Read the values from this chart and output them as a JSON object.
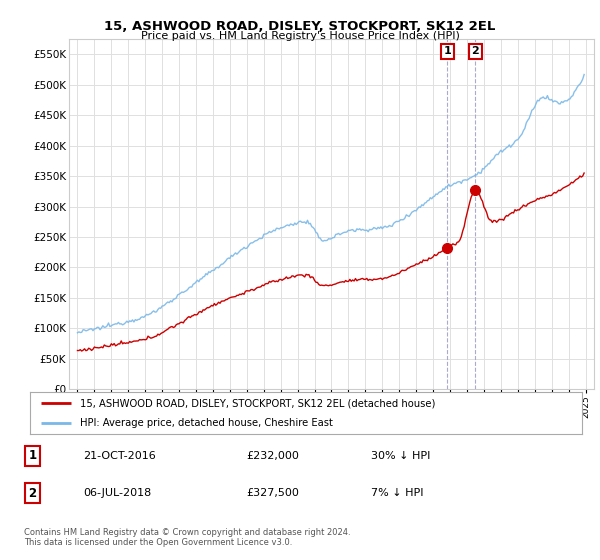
{
  "title": "15, ASHWOOD ROAD, DISLEY, STOCKPORT, SK12 2EL",
  "subtitle": "Price paid vs. HM Land Registry's House Price Index (HPI)",
  "legend_line1": "15, ASHWOOD ROAD, DISLEY, STOCKPORT, SK12 2EL (detached house)",
  "legend_line2": "HPI: Average price, detached house, Cheshire East",
  "transaction1_date": "21-OCT-2016",
  "transaction1_price": "£232,000",
  "transaction1_hpi": "30% ↓ HPI",
  "transaction2_date": "06-JUL-2018",
  "transaction2_price": "£327,500",
  "transaction2_hpi": "7% ↓ HPI",
  "footer": "Contains HM Land Registry data © Crown copyright and database right 2024.\nThis data is licensed under the Open Government Licence v3.0.",
  "hpi_color": "#7ab8e8",
  "price_color": "#cc0000",
  "marker_color": "#cc0000",
  "vline_color": "#aaaacc",
  "ylim": [
    0,
    575000
  ],
  "yticks": [
    0,
    50000,
    100000,
    150000,
    200000,
    250000,
    300000,
    350000,
    400000,
    450000,
    500000,
    550000
  ],
  "background_color": "#ffffff",
  "grid_color": "#e0e0e0",
  "transaction1_x": 2016.792,
  "transaction2_x": 2018.5
}
